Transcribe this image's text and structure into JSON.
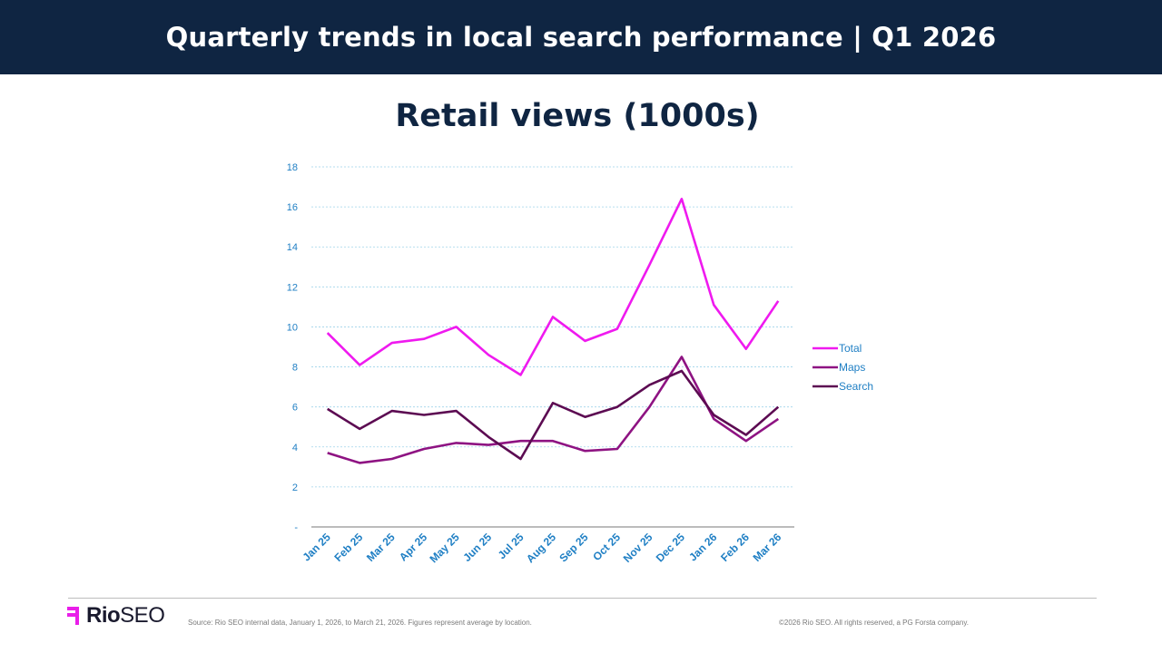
{
  "header": {
    "title": "Quarterly trends in local search performance | Q1 2026"
  },
  "footer": {
    "logo_rio": "Rio",
    "logo_seo": "SEO",
    "source": "Source: Rio SEO internal data, January 1, 2026, to March 21, 2026. Figures represent average by location.",
    "copyright": "©2026 Rio SEO. All rights reserved, a PG Forsta company."
  },
  "colors": {
    "header_bg": "#0f2542",
    "total": "#ef1aef",
    "maps": "#8e1382",
    "search": "#5c0b52",
    "tick": "#1f7fc4",
    "brand": "#e91ee9"
  },
  "chart_data": {
    "type": "line",
    "title": "Retail views (1000s)",
    "xlabel": "",
    "ylabel": "",
    "ylim": [
      0,
      18
    ],
    "yticks": [
      0,
      2,
      4,
      6,
      8,
      10,
      12,
      14,
      16,
      18
    ],
    "ytick_labels": [
      "-",
      "2",
      "4",
      "6",
      "8",
      "10",
      "12",
      "14",
      "16",
      "18"
    ],
    "grid": true,
    "legend_position": "right",
    "categories": [
      "Jan 25",
      "Feb 25",
      "Mar 25",
      "Apr 25",
      "May 25",
      "Jun 25",
      "Jul 25",
      "Aug 25",
      "Sep 25",
      "Oct 25",
      "Nov 25",
      "Dec 25",
      "Jan 26",
      "Feb 26",
      "Mar 26"
    ],
    "series": [
      {
        "name": "Total",
        "color": "#ef1aef",
        "values": [
          9.7,
          8.1,
          9.2,
          9.4,
          10.0,
          8.6,
          7.6,
          10.5,
          9.3,
          9.9,
          13.1,
          16.4,
          11.1,
          8.9,
          11.3
        ]
      },
      {
        "name": "Maps",
        "color": "#8e1382",
        "values": [
          3.7,
          3.2,
          3.4,
          3.9,
          4.2,
          4.1,
          4.3,
          4.3,
          3.8,
          3.9,
          6.0,
          8.5,
          5.4,
          4.3,
          5.4
        ]
      },
      {
        "name": "Search",
        "color": "#5c0b52",
        "values": [
          5.9,
          4.9,
          5.8,
          5.6,
          5.8,
          4.5,
          3.4,
          6.2,
          5.5,
          6.0,
          7.1,
          7.8,
          5.6,
          4.6,
          6.0
        ]
      }
    ]
  }
}
